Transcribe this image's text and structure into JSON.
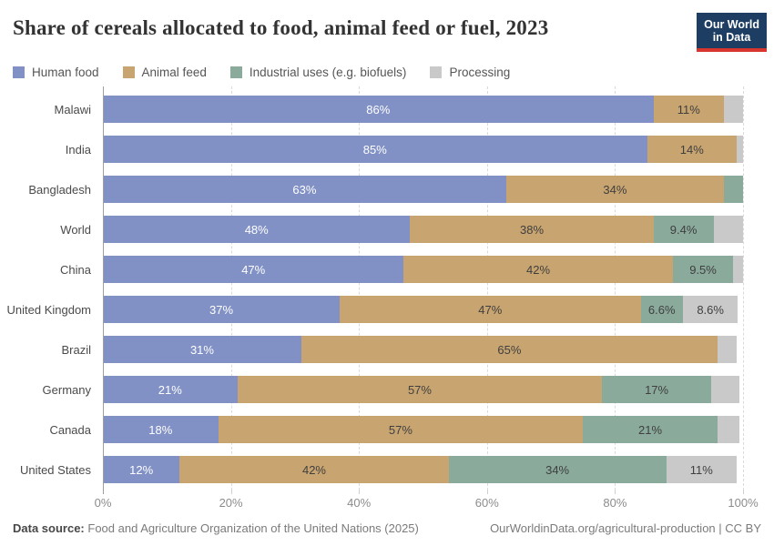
{
  "header": {
    "title": "Share of cereals allocated to food, animal feed or fuel, 2023",
    "logo": {
      "line1": "Our World",
      "line2": "in Data",
      "bg_color": "#1d3d63",
      "accent_color": "#d8352e"
    }
  },
  "chart_data": {
    "type": "bar",
    "orientation": "horizontal",
    "stacked": true,
    "title": "Share of cereals allocated to food, animal feed or fuel, 2023",
    "xlabel": "",
    "ylabel": "",
    "xlim": [
      0,
      100
    ],
    "x_ticks": [
      "0%",
      "20%",
      "40%",
      "60%",
      "80%",
      "100%"
    ],
    "grid": "dashed-vertical",
    "legend_position": "top",
    "categories": [
      "Malawi",
      "India",
      "Bangladesh",
      "World",
      "China",
      "United Kingdom",
      "Brazil",
      "Germany",
      "Canada",
      "United States"
    ],
    "series": [
      {
        "name": "Human food",
        "color": "#8191C5",
        "label_color": "#ffffff",
        "values": [
          86,
          85,
          63,
          48,
          47,
          37,
          31,
          21,
          18,
          12
        ]
      },
      {
        "name": "Animal feed",
        "color": "#C8A470",
        "label_color": "#3f3f3f",
        "values": [
          11,
          14,
          34,
          38,
          42,
          47,
          65,
          57,
          57,
          42
        ]
      },
      {
        "name": "Industrial uses (e.g. biofuels)",
        "color": "#8AAA9C",
        "label_color": "#3f3f3f",
        "values": [
          0,
          0,
          3,
          9.4,
          9.5,
          6.6,
          0,
          17,
          21,
          34
        ]
      },
      {
        "name": "Processing",
        "color": "#C9C9C9",
        "label_color": "#3f3f3f",
        "values": [
          3,
          1,
          0,
          4.6,
          1.5,
          8.6,
          3,
          4.5,
          3.5,
          11
        ]
      }
    ],
    "segment_labels": [
      [
        "86%",
        "11%",
        "",
        ""
      ],
      [
        "85%",
        "14%",
        "",
        ""
      ],
      [
        "63%",
        "34%",
        "",
        ""
      ],
      [
        "48%",
        "38%",
        "9.4%",
        ""
      ],
      [
        "47%",
        "42%",
        "9.5%",
        ""
      ],
      [
        "37%",
        "47%",
        "6.6%",
        "8.6%"
      ],
      [
        "31%",
        "65%",
        "",
        ""
      ],
      [
        "21%",
        "57%",
        "17%",
        ""
      ],
      [
        "18%",
        "57%",
        "21%",
        ""
      ],
      [
        "12%",
        "42%",
        "34%",
        "11%"
      ]
    ]
  },
  "footer": {
    "source_label": "Data source:",
    "source_text": "Food and Agriculture Organization of the United Nations (2025)",
    "credit": "OurWorldinData.org/agricultural-production | CC BY"
  }
}
